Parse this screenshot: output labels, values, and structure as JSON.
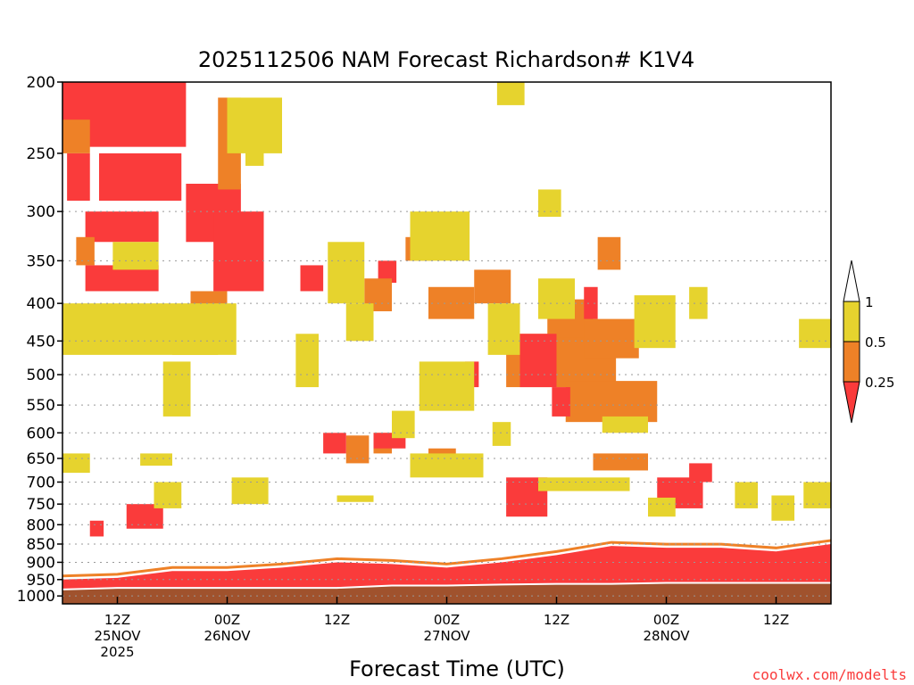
{
  "chart_data": {
    "type": "heatmap",
    "title": "2025112506 NAM Forecast Richardson# K1V4",
    "xlabel": "Forecast Time (UTC)",
    "ylabel": "",
    "credit": "coolwx.com/modelts",
    "y_axis": {
      "scale": "log-pressure",
      "unit": "hPa",
      "range": [
        200,
        1025
      ],
      "ticks": [
        "200",
        "250",
        "300",
        "350",
        "400",
        "450",
        "500",
        "550",
        "600",
        "650",
        "700",
        "750",
        "800",
        "850",
        "900",
        "950",
        "1000"
      ]
    },
    "x_axis": {
      "unit": "forecast hour",
      "range": [
        0,
        84
      ],
      "ticks": [
        {
          "hour": 6,
          "line1": "12Z",
          "line2": "25NOV",
          "line3": "2025"
        },
        {
          "hour": 18,
          "line1": "00Z",
          "line2": "26NOV",
          "line3": ""
        },
        {
          "hour": 30,
          "line1": "12Z",
          "line2": "",
          "line3": ""
        },
        {
          "hour": 42,
          "line1": "00Z",
          "line2": "27NOV",
          "line3": ""
        },
        {
          "hour": 54,
          "line1": "12Z",
          "line2": "",
          "line3": ""
        },
        {
          "hour": 66,
          "line1": "00Z",
          "line2": "28NOV",
          "line3": ""
        },
        {
          "hour": 78,
          "line1": "12Z",
          "line2": "",
          "line3": ""
        }
      ]
    },
    "gridlines_hpa": [
      300,
      350,
      400,
      450,
      500,
      550,
      600,
      650,
      700,
      750,
      800,
      850,
      900,
      950,
      1000
    ],
    "legend": {
      "position": "right",
      "levels": [
        {
          "label": "1",
          "color": "#e6d32e",
          "range": "0.5-1"
        },
        {
          "label": "0.5",
          "color": "#ee8127",
          "range": "0.25-0.5"
        },
        {
          "label": "0.25",
          "color": "#fa3b3b",
          "range": "<0.25"
        }
      ],
      "above_max_color": "#ffffff"
    },
    "colors": {
      "low": "#fa3b3b",
      "mid": "#ee8127",
      "high": "#e6d32e",
      "ground": "#a0522d"
    },
    "regions": [
      {
        "level": "low",
        "h": [
          0,
          13.5
        ],
        "p": [
          200,
          245
        ]
      },
      {
        "level": "low",
        "h": [
          0.5,
          3
        ],
        "p": [
          250,
          290
        ]
      },
      {
        "level": "low",
        "h": [
          4,
          13
        ],
        "p": [
          250,
          290
        ]
      },
      {
        "level": "low",
        "h": [
          13.5,
          19.5
        ],
        "p": [
          275,
          330
        ]
      },
      {
        "level": "low",
        "h": [
          16.5,
          22
        ],
        "p": [
          300,
          385
        ]
      },
      {
        "level": "low",
        "h": [
          2.5,
          10.5
        ],
        "p": [
          300,
          330
        ]
      },
      {
        "level": "low",
        "h": [
          2.5,
          10.5
        ],
        "p": [
          355,
          385
        ]
      },
      {
        "level": "low",
        "h": [
          26,
          28.5
        ],
        "p": [
          355,
          385
        ]
      },
      {
        "level": "low",
        "h": [
          34.5,
          36.5
        ],
        "p": [
          350,
          375
        ]
      },
      {
        "level": "mid",
        "h": [
          0,
          3
        ],
        "p": [
          225,
          250
        ]
      },
      {
        "level": "mid",
        "h": [
          17,
          19.5
        ],
        "p": [
          210,
          280
        ]
      },
      {
        "level": "mid",
        "h": [
          1.5,
          3.5
        ],
        "p": [
          325,
          355
        ]
      },
      {
        "level": "mid",
        "h": [
          14,
          18
        ],
        "p": [
          385,
          420
        ]
      },
      {
        "level": "mid",
        "h": [
          33,
          36
        ],
        "p": [
          370,
          410
        ]
      },
      {
        "level": "mid",
        "h": [
          37.5,
          40.5
        ],
        "p": [
          325,
          350
        ]
      },
      {
        "level": "mid",
        "h": [
          40,
          45
        ],
        "p": [
          380,
          420
        ]
      },
      {
        "level": "mid",
        "h": [
          45,
          49
        ],
        "p": [
          360,
          400
        ]
      },
      {
        "level": "mid",
        "h": [
          48.5,
          60.5
        ],
        "p": [
          440,
          520
        ]
      },
      {
        "level": "mid",
        "h": [
          53,
          58
        ],
        "p": [
          395,
          445
        ]
      },
      {
        "level": "mid",
        "h": [
          55,
          65
        ],
        "p": [
          510,
          580
        ]
      },
      {
        "level": "mid",
        "h": [
          57,
          63
        ],
        "p": [
          420,
          475
        ]
      },
      {
        "level": "mid",
        "h": [
          58.5,
          61
        ],
        "p": [
          325,
          360
        ]
      },
      {
        "level": "mid",
        "h": [
          31,
          33.5
        ],
        "p": [
          605,
          660
        ]
      },
      {
        "level": "mid",
        "h": [
          34,
          36
        ],
        "p": [
          600,
          640
        ]
      },
      {
        "level": "mid",
        "h": [
          58,
          64
        ],
        "p": [
          640,
          675
        ]
      },
      {
        "level": "mid",
        "h": [
          40,
          43
        ],
        "p": [
          630,
          665
        ]
      },
      {
        "level": "low",
        "h": [
          48.5,
          53
        ],
        "p": [
          690,
          780
        ]
      },
      {
        "level": "low",
        "h": [
          50,
          54
        ],
        "p": [
          440,
          520
        ]
      },
      {
        "level": "low",
        "h": [
          53.5,
          55.5
        ],
        "p": [
          520,
          570
        ]
      },
      {
        "level": "low",
        "h": [
          57,
          58.5
        ],
        "p": [
          380,
          420
        ]
      },
      {
        "level": "low",
        "h": [
          65,
          70
        ],
        "p": [
          690,
          760
        ]
      },
      {
        "level": "low",
        "h": [
          68.5,
          71
        ],
        "p": [
          660,
          700
        ]
      },
      {
        "level": "low",
        "h": [
          7,
          11
        ],
        "p": [
          750,
          810
        ]
      },
      {
        "level": "low",
        "h": [
          3,
          4.5
        ],
        "p": [
          790,
          830
        ]
      },
      {
        "level": "low",
        "h": [
          28.5,
          31
        ],
        "p": [
          600,
          640
        ]
      },
      {
        "level": "low",
        "h": [
          34,
          37.5
        ],
        "p": [
          600,
          630
        ]
      },
      {
        "level": "low",
        "h": [
          44,
          45.5
        ],
        "p": [
          480,
          520
        ]
      },
      {
        "level": "high",
        "h": [
          0,
          19
        ],
        "p": [
          400,
          470
        ]
      },
      {
        "level": "high",
        "h": [
          18,
          24
        ],
        "p": [
          210,
          250
        ]
      },
      {
        "level": "high",
        "h": [
          5.5,
          10.5
        ],
        "p": [
          330,
          360
        ]
      },
      {
        "level": "high",
        "h": [
          12,
          17
        ],
        "p": [
          415,
          470
        ]
      },
      {
        "level": "high",
        "h": [
          11,
          14
        ],
        "p": [
          480,
          570
        ]
      },
      {
        "level": "high",
        "h": [
          0,
          3
        ],
        "p": [
          640,
          680
        ]
      },
      {
        "level": "high",
        "h": [
          10,
          13
        ],
        "p": [
          700,
          760
        ]
      },
      {
        "level": "high",
        "h": [
          18.5,
          22.5
        ],
        "p": [
          690,
          750
        ]
      },
      {
        "level": "high",
        "h": [
          29,
          33
        ],
        "p": [
          330,
          400
        ]
      },
      {
        "level": "high",
        "h": [
          31,
          34
        ],
        "p": [
          400,
          450
        ]
      },
      {
        "level": "high",
        "h": [
          36,
          38.5
        ],
        "p": [
          560,
          610
        ]
      },
      {
        "level": "high",
        "h": [
          38,
          44.5
        ],
        "p": [
          300,
          350
        ]
      },
      {
        "level": "high",
        "h": [
          39,
          45
        ],
        "p": [
          480,
          560
        ]
      },
      {
        "level": "high",
        "h": [
          38,
          46
        ],
        "p": [
          640,
          690
        ]
      },
      {
        "level": "high",
        "h": [
          46.5,
          50
        ],
        "p": [
          400,
          470
        ]
      },
      {
        "level": "high",
        "h": [
          47.5,
          50.5
        ],
        "p": [
          200,
          215
        ]
      },
      {
        "level": "high",
        "h": [
          52,
          56
        ],
        "p": [
          370,
          420
        ]
      },
      {
        "level": "high",
        "h": [
          52,
          54.5
        ],
        "p": [
          280,
          305
        ]
      },
      {
        "level": "high",
        "h": [
          52,
          62
        ],
        "p": [
          690,
          720
        ]
      },
      {
        "level": "high",
        "h": [
          59,
          64
        ],
        "p": [
          570,
          600
        ]
      },
      {
        "level": "high",
        "h": [
          62.5,
          67
        ],
        "p": [
          390,
          460
        ]
      },
      {
        "level": "high",
        "h": [
          68.5,
          70.5
        ],
        "p": [
          380,
          420
        ]
      },
      {
        "level": "high",
        "h": [
          64,
          67
        ],
        "p": [
          735,
          780
        ]
      },
      {
        "level": "high",
        "h": [
          80.5,
          84
        ],
        "p": [
          420,
          460
        ]
      },
      {
        "level": "high",
        "h": [
          81,
          84
        ],
        "p": [
          700,
          760
        ]
      },
      {
        "level": "high",
        "h": [
          8.5,
          12
        ],
        "p": [
          640,
          665
        ]
      },
      {
        "level": "high",
        "h": [
          20,
          22
        ],
        "p": [
          230,
          260
        ]
      },
      {
        "level": "high",
        "h": [
          25.5,
          28
        ],
        "p": [
          440,
          520
        ]
      },
      {
        "level": "high",
        "h": [
          47,
          49
        ],
        "p": [
          580,
          625
        ]
      },
      {
        "level": "high",
        "h": [
          73.5,
          76
        ],
        "p": [
          700,
          760
        ]
      },
      {
        "level": "high",
        "h": [
          77.5,
          80
        ],
        "p": [
          730,
          790
        ]
      },
      {
        "level": "high",
        "h": [
          30,
          34
        ],
        "p": [
          730,
          745
        ]
      }
    ],
    "boundary_layer": {
      "hours": [
        0,
        6,
        12,
        18,
        24,
        30,
        36,
        42,
        48,
        54,
        60,
        66,
        72,
        78,
        84
      ],
      "red_top": [
        950,
        945,
        925,
        925,
        915,
        900,
        905,
        915,
        900,
        880,
        855,
        860,
        860,
        870,
        850
      ],
      "ground": [
        980,
        975,
        975,
        975,
        975,
        975,
        968,
        968,
        965,
        963,
        963,
        960,
        960,
        960,
        960
      ]
    }
  }
}
